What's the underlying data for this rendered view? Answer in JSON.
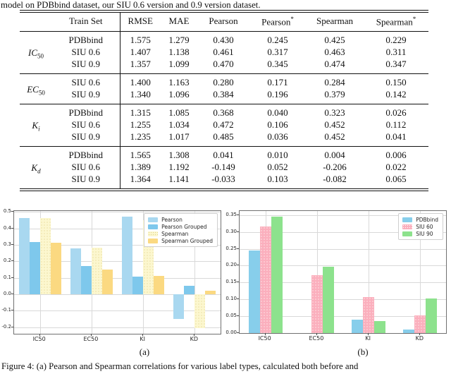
{
  "page": {
    "top_text": "model on PDBbind dataset, our SIU 0.6 version and 0.9 version dataset.",
    "subcaption_a": "(a)",
    "subcaption_b": "(b)",
    "bottom_caption": "Figure 4: (a) Pearson and Spearman correlations for various label types, calculated both before and"
  },
  "table": {
    "col_headers": [
      {
        "text": "Train Set",
        "sup": ""
      },
      {
        "text": "RMSE",
        "sup": ""
      },
      {
        "text": "MAE",
        "sup": ""
      },
      {
        "text": "Pearson",
        "sup": ""
      },
      {
        "text": "Pearson",
        "sup": "*"
      },
      {
        "text": "Spearman",
        "sup": ""
      },
      {
        "text": "Spearman",
        "sup": "*"
      }
    ],
    "groups": [
      {
        "label_main": "IC",
        "label_sub": "50",
        "sub_italic": false,
        "rows": [
          {
            "train_set": "PDBbind",
            "values": [
              "1.575",
              "1.279",
              "0.430",
              "0.245",
              "0.425",
              "0.229"
            ]
          },
          {
            "train_set": "SIU 0.6",
            "values": [
              "1.407",
              "1.138",
              "0.461",
              "0.317",
              "0.463",
              "0.311"
            ]
          },
          {
            "train_set": "SIU 0.9",
            "values": [
              "1.357",
              "1.099",
              "0.470",
              "0.345",
              "0.474",
              "0.347"
            ]
          }
        ]
      },
      {
        "label_main": "EC",
        "label_sub": "50",
        "sub_italic": false,
        "rows": [
          {
            "train_set": "SIU 0.6",
            "values": [
              "1.400",
              "1.163",
              "0.280",
              "0.171",
              "0.284",
              "0.150"
            ]
          },
          {
            "train_set": "SIU 0.9",
            "values": [
              "1.340",
              "1.096",
              "0.384",
              "0.196",
              "0.379",
              "0.142"
            ]
          }
        ]
      },
      {
        "label_main": "K",
        "label_sub": "i",
        "sub_italic": true,
        "rows": [
          {
            "train_set": "PDBbind",
            "values": [
              "1.315",
              "1.085",
              "0.368",
              "0.040",
              "0.323",
              "0.026"
            ]
          },
          {
            "train_set": "SIU 0.6",
            "values": [
              "1.255",
              "1.034",
              "0.472",
              "0.106",
              "0.452",
              "0.112"
            ]
          },
          {
            "train_set": "SIU 0.9",
            "values": [
              "1.235",
              "1.017",
              "0.485",
              "0.036",
              "0.452",
              "0.041"
            ]
          }
        ]
      },
      {
        "label_main": "K",
        "label_sub": "d",
        "sub_italic": true,
        "rows": [
          {
            "train_set": "PDBbind",
            "values": [
              "1.565",
              "1.308",
              "0.041",
              "0.010",
              "0.004",
              "0.006"
            ]
          },
          {
            "train_set": "SIU 0.6",
            "values": [
              "1.389",
              "1.192",
              "-0.149",
              "0.052",
              "-0.206",
              "0.022"
            ]
          },
          {
            "train_set": "SIU 0.9",
            "values": [
              "1.364",
              "1.141",
              "-0.033",
              "0.103",
              "-0.082",
              "0.065"
            ]
          }
        ]
      }
    ]
  },
  "chart_data": [
    {
      "type": "bar",
      "title": "",
      "xlabel": "",
      "ylabel": "",
      "categories": [
        "IC50",
        "EC50",
        "KI",
        "KD"
      ],
      "series": [
        {
          "name": "Pearson",
          "color": "#a9d8f0",
          "hatch": null,
          "values": [
            0.461,
            0.28,
            0.472,
            -0.149
          ]
        },
        {
          "name": "Pearson Grouped",
          "color": "#7ec8ec",
          "hatch": null,
          "values": [
            0.317,
            0.171,
            0.106,
            0.052
          ]
        },
        {
          "name": "Spearman",
          "color": "#fcf7cf",
          "hatch": "#e0d28a",
          "values": [
            0.463,
            0.284,
            0.452,
            -0.206
          ]
        },
        {
          "name": "Spearman Grouped",
          "color": "#fbd981",
          "hatch": null,
          "values": [
            0.311,
            0.15,
            0.112,
            0.022
          ]
        }
      ],
      "ylim": [
        -0.24,
        0.506
      ],
      "yticks": [
        0.5,
        0.4,
        0.3,
        0.2,
        0.1,
        0.0,
        -0.1,
        -0.2
      ],
      "ytick_labels": [
        "0.5",
        "0.4",
        "0.3",
        "0.2",
        "0.1",
        "0.0",
        "-0.1",
        "-0.2"
      ],
      "grid": true,
      "legend_position": "upper right"
    },
    {
      "type": "bar",
      "title": "",
      "xlabel": "",
      "ylabel": "",
      "categories": [
        "IC50",
        "EC50",
        "KI",
        "KD"
      ],
      "series": [
        {
          "name": "PDBbind",
          "color": "#87ceeb",
          "hatch": null,
          "values": [
            0.245,
            null,
            0.04,
            0.01
          ]
        },
        {
          "name": "SIU 60",
          "color": "#fbafbd",
          "hatch": "#ffffff",
          "values": [
            0.317,
            0.171,
            0.106,
            0.052
          ]
        },
        {
          "name": "SIU 90",
          "color": "#8de28d",
          "hatch": null,
          "values": [
            0.345,
            0.196,
            0.036,
            0.103
          ]
        }
      ],
      "ylim": [
        0,
        0.362
      ],
      "yticks": [
        0.35,
        0.3,
        0.25,
        0.2,
        0.15,
        0.1,
        0.05,
        0.0
      ],
      "ytick_labels": [
        "0.35",
        "0.30",
        "0.25",
        "0.20",
        "0.15",
        "0.10",
        "0.05",
        "0.00"
      ],
      "grid": true,
      "legend_position": "upper right"
    }
  ],
  "style": {
    "grid_color": "#d9d9d9",
    "axis_color": "#707070"
  }
}
